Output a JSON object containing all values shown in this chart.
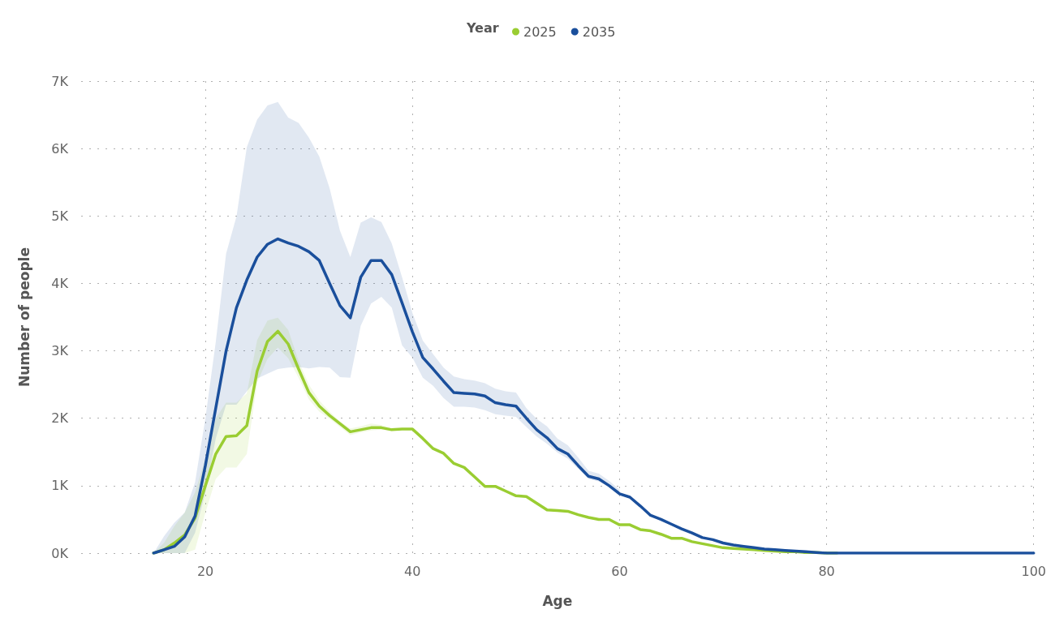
{
  "chart_data": {
    "type": "line",
    "xlabel": "Age",
    "ylabel": "Number of people",
    "legend_title": "Year",
    "legend": "top",
    "grid": true,
    "marker": "none",
    "line_style": "solid",
    "xlim": [
      8,
      100
    ],
    "xticks": [
      20,
      40,
      60,
      80,
      100
    ],
    "ylim": [
      0,
      7000
    ],
    "yticks": [
      {
        "value": 0,
        "label": "0K"
      },
      {
        "value": 1000,
        "label": "1K"
      },
      {
        "value": 2000,
        "label": "2K"
      },
      {
        "value": 3000,
        "label": "3K"
      },
      {
        "value": 4000,
        "label": "4K"
      },
      {
        "value": 5000,
        "label": "5K"
      },
      {
        "value": 6000,
        "label": "6K"
      },
      {
        "value": 7000,
        "label": "7K"
      }
    ],
    "x": [
      15,
      16,
      17,
      18,
      19,
      20,
      21,
      22,
      23,
      24,
      25,
      26,
      27,
      28,
      29,
      30,
      31,
      32,
      33,
      34,
      35,
      36,
      37,
      38,
      39,
      40,
      41,
      42,
      43,
      44,
      45,
      46,
      47,
      48,
      49,
      50,
      51,
      52,
      53,
      54,
      55,
      56,
      57,
      58,
      59,
      60,
      61,
      62,
      63,
      64,
      65,
      66,
      67,
      68,
      69,
      70,
      71,
      72,
      73,
      74,
      75,
      76,
      77,
      78,
      79,
      80,
      81,
      82,
      83,
      84,
      85,
      86,
      87,
      88,
      89,
      90,
      91,
      92,
      93,
      94,
      95,
      96,
      97,
      98,
      99,
      100
    ],
    "series": [
      {
        "name": "2025",
        "color": "#9acd32",
        "values": [
          0,
          50,
          150,
          270,
          520,
          1000,
          1470,
          1730,
          1740,
          1890,
          2700,
          3140,
          3290,
          3100,
          2730,
          2380,
          2180,
          2040,
          1920,
          1800,
          1830,
          1860,
          1860,
          1830,
          1840,
          1840,
          1700,
          1550,
          1480,
          1330,
          1270,
          1130,
          990,
          990,
          920,
          850,
          840,
          740,
          640,
          630,
          620,
          570,
          530,
          500,
          500,
          420,
          420,
          350,
          330,
          280,
          220,
          220,
          170,
          140,
          110,
          80,
          70,
          60,
          50,
          40,
          30,
          20,
          20,
          10,
          10,
          0,
          0,
          null,
          null,
          null,
          null,
          null,
          null,
          null,
          null,
          null,
          null,
          null,
          null,
          null,
          null,
          null,
          null,
          null,
          null,
          null
        ],
        "upper": [
          0,
          150,
          400,
          600,
          900,
          1400,
          2000,
          2230,
          2230,
          2370,
          3160,
          3450,
          3490,
          3310,
          2850,
          2500,
          2260,
          2100,
          1950,
          1850,
          1880,
          1920,
          1900,
          1850,
          null,
          null,
          null,
          null,
          null,
          null,
          null,
          null,
          null,
          null,
          null,
          null,
          null,
          null,
          null,
          null,
          null,
          null,
          null,
          null,
          null,
          null,
          null,
          null,
          null,
          null,
          null,
          null,
          null,
          null,
          null,
          null,
          null,
          null,
          null,
          null,
          null,
          null,
          null,
          null,
          null,
          null,
          null,
          null,
          null,
          null,
          null,
          null,
          null,
          null,
          null,
          null,
          null,
          null,
          null,
          null,
          null,
          null,
          null,
          null,
          null,
          null
        ],
        "lower": [
          0,
          0,
          0,
          0,
          50,
          600,
          1100,
          1270,
          1270,
          1470,
          2530,
          2880,
          3050,
          2890,
          2600,
          2280,
          2100,
          1990,
          1870,
          1750,
          1790,
          1820,
          1830,
          1810,
          null,
          null,
          null,
          null,
          null,
          null,
          null,
          null,
          null,
          null,
          null,
          null,
          null,
          null,
          null,
          null,
          null,
          null,
          null,
          null,
          null,
          null,
          null,
          null,
          null,
          null,
          null,
          null,
          null,
          null,
          null,
          null,
          null,
          null,
          null,
          null,
          null,
          null,
          null,
          null,
          null,
          null,
          null,
          null,
          null,
          null,
          null,
          null,
          null,
          null,
          null,
          null,
          null,
          null,
          null,
          null,
          null,
          null,
          null,
          null,
          null,
          null
        ]
      },
      {
        "name": "2035",
        "color": "#1a4f9c",
        "values": [
          0,
          50,
          100,
          240,
          550,
          1300,
          2150,
          3000,
          3640,
          4050,
          4390,
          4580,
          4660,
          4600,
          4550,
          4470,
          4340,
          4000,
          3670,
          3490,
          4090,
          4340,
          4340,
          4130,
          3710,
          3280,
          2900,
          2730,
          2550,
          2380,
          2370,
          2360,
          2330,
          2230,
          2200,
          2180,
          2000,
          1830,
          1710,
          1550,
          1470,
          1300,
          1140,
          1100,
          1000,
          880,
          830,
          700,
          560,
          500,
          430,
          360,
          300,
          230,
          200,
          150,
          120,
          100,
          80,
          60,
          50,
          40,
          30,
          20,
          10,
          0,
          0,
          0,
          0,
          0,
          0,
          0,
          0,
          0,
          0,
          0,
          0,
          0,
          0,
          0,
          0,
          0,
          0,
          0,
          0,
          0
        ],
        "upper": [
          0,
          250,
          450,
          600,
          1050,
          2000,
          3130,
          4440,
          4990,
          6020,
          6430,
          6640,
          6690,
          6460,
          6380,
          6160,
          5880,
          5410,
          4780,
          4390,
          4900,
          4980,
          4910,
          4590,
          4090,
          3560,
          3150,
          2950,
          2750,
          2620,
          2580,
          2560,
          2520,
          2440,
          2400,
          2380,
          2150,
          1990,
          1880,
          1700,
          1600,
          1420,
          1220,
          1180,
          1070,
          940,
          null,
          null,
          null,
          null,
          null,
          null,
          null,
          null,
          null,
          null,
          null,
          null,
          null,
          null,
          null,
          null,
          null,
          null,
          null,
          null,
          null,
          null,
          null,
          null,
          null,
          null,
          null,
          null,
          null,
          null,
          null,
          null,
          null,
          null,
          null,
          null,
          null,
          null,
          null,
          null
        ],
        "lower": [
          0,
          0,
          0,
          0,
          300,
          900,
          1700,
          2200,
          2200,
          2400,
          2590,
          2660,
          2730,
          2750,
          2760,
          2740,
          2760,
          2750,
          2610,
          2600,
          3370,
          3700,
          3800,
          3640,
          3080,
          2900,
          2600,
          2480,
          2300,
          2170,
          2170,
          2160,
          2120,
          2060,
          2040,
          2020,
          1870,
          1730,
          1620,
          1490,
          1400,
          1250,
          1100,
          1060,
          980,
          870,
          null,
          null,
          null,
          null,
          null,
          null,
          null,
          null,
          null,
          null,
          null,
          null,
          null,
          null,
          null,
          null,
          null,
          null,
          null,
          null,
          null,
          null,
          null,
          null,
          null,
          null,
          null,
          null,
          null,
          null,
          null,
          null,
          null,
          null,
          null,
          null,
          null,
          null,
          null,
          null
        ]
      }
    ]
  }
}
